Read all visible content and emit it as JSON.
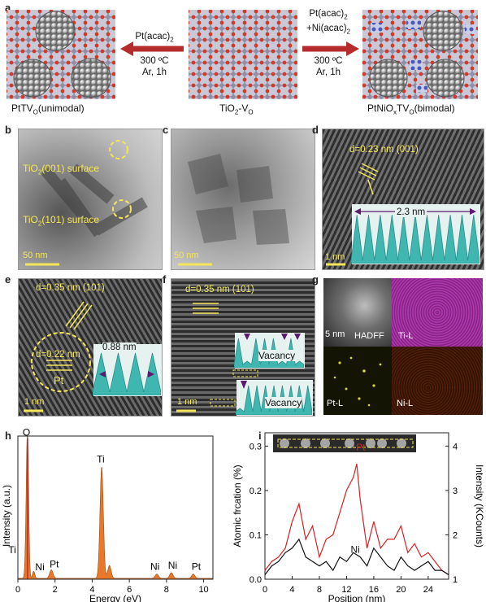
{
  "panel_a": {
    "label": "a",
    "left_caption": "PtTV",
    "left_caption_sub": "O",
    "left_caption_rest": "(unimodal)",
    "center_caption": "TiO",
    "center_caption_sub1": "2",
    "center_caption_mid": "-V",
    "center_caption_sub2": "O",
    "right_caption": "PtNiO",
    "right_caption_sub1": "x",
    "right_caption_mid": "TV",
    "right_caption_sub2": "O",
    "right_caption_rest": "(bimodal)",
    "left_arrow_reagent": "Pt(acac)",
    "left_arrow_reagent_sub": "2",
    "right_arrow_reagent_line1": "Pt(acac)",
    "right_arrow_reagent_line1_sub": "2",
    "right_arrow_reagent_line2": "+Ni(acac)",
    "right_arrow_reagent_line2_sub": "2",
    "temperature": "300 ºC",
    "conditions": "Ar, 1h"
  },
  "panel_b": {
    "label": "b",
    "ann1": "TiO",
    "ann1_sub": "2",
    "ann1_rest": "(001) surface",
    "ann2": "TiO",
    "ann2_sub": "2",
    "ann2_rest": "(101) surface",
    "scale": "50 nm"
  },
  "panel_c": {
    "label": "c",
    "scale": "50 nm"
  },
  "panel_d": {
    "label": "d",
    "spacing": "d=0.23 nm (001)",
    "profile_width": "2.3 nm",
    "scale": "1 nm"
  },
  "panel_e": {
    "label": "e",
    "spacing1": "d=0.35 nm (101)",
    "spacing2": "d=0.22 nm",
    "element": "Pt",
    "profile_width": "0.88 nm",
    "scale": "1 nm"
  },
  "panel_f": {
    "label": "f",
    "spacing": "d=0.35 nm (101)",
    "vacancy1": "Vacancy",
    "vacancy2": "Vacancy",
    "scale": "1 nm"
  },
  "panel_g": {
    "label": "g",
    "scale": "5 nm",
    "haadf": "HADFF",
    "ti": "Ti-L",
    "pt": "Pt-L",
    "ni": "Ni-L"
  },
  "panel_h": {
    "label": "h"
  },
  "panel_i": {
    "label": "i"
  },
  "colors": {
    "pt_red": "#d62020",
    "ni_black": "#111111",
    "eds_orange": "#e8782a",
    "scale_yellow": "#f4e65a",
    "profile_cyan": "#3fb6b0",
    "arrow_red": "#b62b2b"
  },
  "chart_data": [
    {
      "type": "line",
      "panel": "h",
      "xlabel": "Energy (eV)",
      "ylabel": "Intensity (a.u.)",
      "xlim": [
        0,
        10.5
      ],
      "xticks": [
        0,
        2,
        4,
        6,
        8,
        10
      ],
      "grid": false,
      "peaks": [
        {
          "label": "O",
          "x": 0.52,
          "y": 0.98
        },
        {
          "label": "Ti",
          "x": 0.45,
          "y": 0.16
        },
        {
          "label": "Ni",
          "x": 0.85,
          "y": 0.05
        },
        {
          "label": "Pt",
          "x": 1.8,
          "y": 0.06
        },
        {
          "label": "Ti",
          "x": 4.51,
          "y": 0.78
        },
        {
          "label": "",
          "x": 4.93,
          "y": 0.09
        },
        {
          "label": "Ni",
          "x": 7.48,
          "y": 0.03
        },
        {
          "label": "Ni",
          "x": 8.26,
          "y": 0.04
        },
        {
          "label": "Pt",
          "x": 9.44,
          "y": 0.03
        }
      ]
    },
    {
      "type": "line",
      "panel": "i",
      "xlabel": "Position (nm)",
      "ylabel": "Atomic frcation (%)",
      "ylabel_right": "Intensity (KCounts)",
      "xlim": [
        0,
        27
      ],
      "ylim": [
        0,
        0.33
      ],
      "ylim_right": [
        1,
        4.3
      ],
      "xticks": [
        0,
        4,
        8,
        12,
        16,
        20,
        24
      ],
      "yticks": [
        0.0,
        0.1,
        0.2,
        0.3
      ],
      "yticks_right": [
        1,
        2,
        3,
        4
      ],
      "grid": false,
      "series": [
        {
          "name": "Pt",
          "color": "#d62020",
          "x": [
            0,
            1,
            2,
            3,
            4,
            5,
            6,
            7,
            8,
            9,
            10,
            11,
            12,
            13,
            13.5,
            14,
            15,
            16,
            17,
            18,
            19,
            20,
            21,
            22,
            23,
            24,
            25,
            26,
            27
          ],
          "values": [
            0.02,
            0.04,
            0.05,
            0.07,
            0.13,
            0.17,
            0.09,
            0.12,
            0.05,
            0.09,
            0.1,
            0.15,
            0.2,
            0.23,
            0.26,
            0.18,
            0.07,
            0.13,
            0.07,
            0.09,
            0.09,
            0.12,
            0.06,
            0.08,
            0.05,
            0.06,
            0.04,
            0.02,
            0.01
          ]
        },
        {
          "name": "Ni",
          "color": "#111111",
          "x": [
            0,
            1,
            2,
            3,
            4,
            5,
            6,
            7,
            8,
            9,
            10,
            11,
            12,
            13,
            14,
            15,
            16,
            17,
            18,
            19,
            20,
            21,
            22,
            23,
            24,
            25,
            26,
            27
          ],
          "values": [
            0.01,
            0.03,
            0.04,
            0.06,
            0.07,
            0.09,
            0.05,
            0.04,
            0.03,
            0.04,
            0.02,
            0.05,
            0.04,
            0.06,
            0.05,
            0.03,
            0.07,
            0.05,
            0.03,
            0.02,
            0.05,
            0.03,
            0.02,
            0.03,
            0.04,
            0.02,
            0.02,
            0.01
          ]
        }
      ]
    }
  ]
}
